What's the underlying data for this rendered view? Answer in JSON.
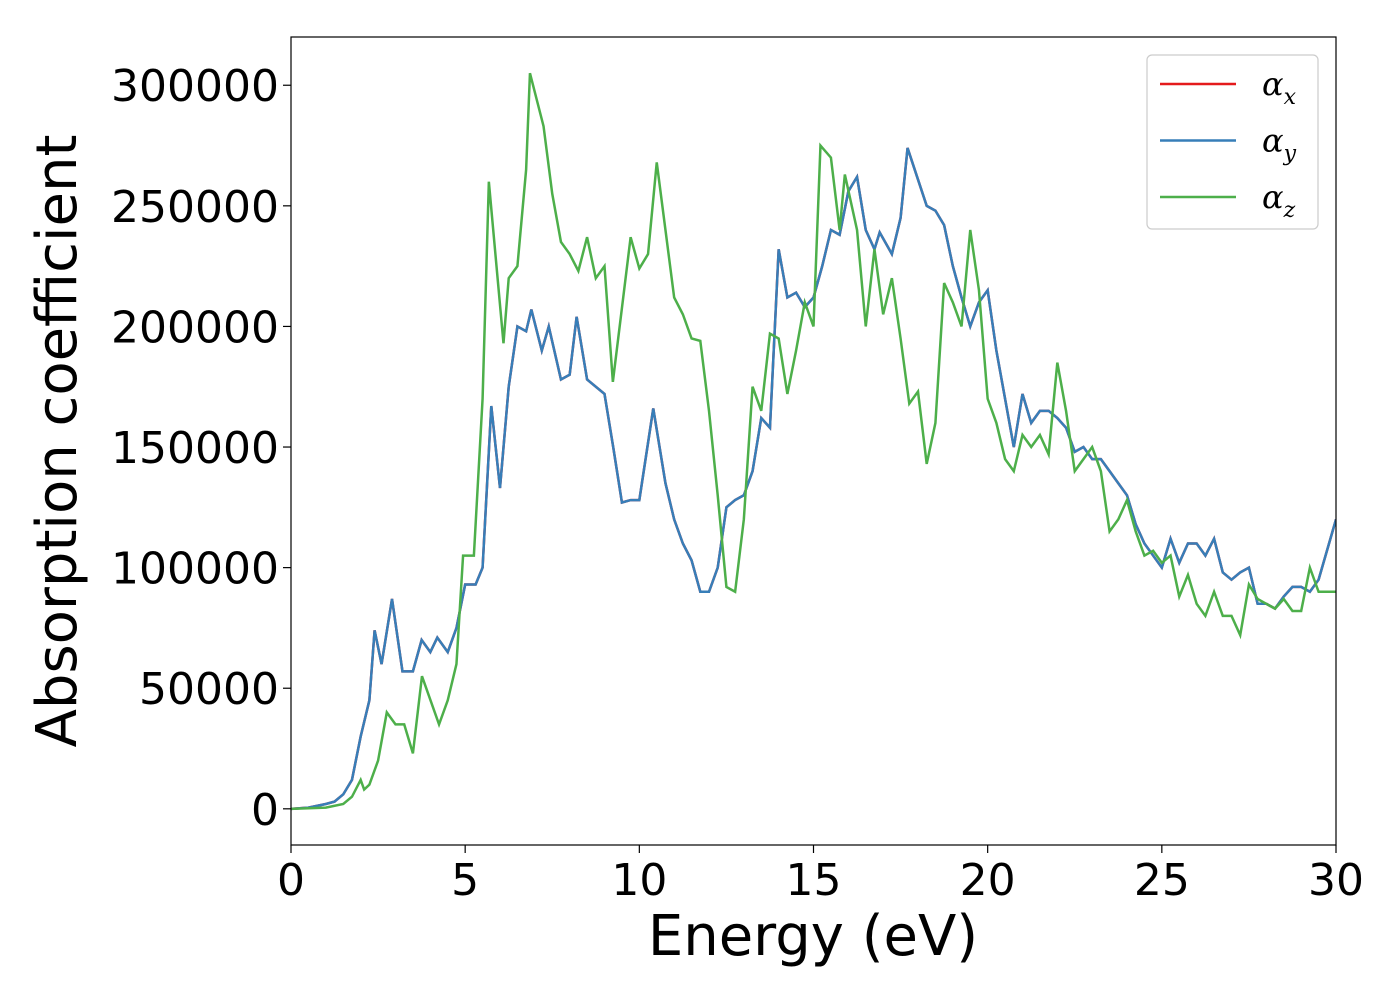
{
  "chart_data": {
    "type": "line",
    "x_label": "Energy (eV)",
    "y_label": "Absorption coefficient",
    "xlim": [
      0,
      30
    ],
    "ylim": [
      -15000,
      320000
    ],
    "xticks": [
      0,
      5,
      10,
      15,
      20,
      25,
      30
    ],
    "yticks": [
      0,
      50000,
      100000,
      150000,
      200000,
      250000,
      300000
    ],
    "legend": "upper right",
    "series": [
      {
        "name": "αx",
        "color": "#e41a1c",
        "x": [
          0,
          0.5,
          1,
          1.25,
          1.5,
          1.75,
          2,
          2.25,
          2.4,
          2.6,
          2.9,
          3.2,
          3.5,
          3.75,
          4,
          4.2,
          4.5,
          4.75,
          5,
          5.3,
          5.5,
          5.75,
          6,
          6.25,
          6.5,
          6.75,
          6.9,
          7.2,
          7.4,
          7.75,
          8,
          8.2,
          8.5,
          9,
          9.25,
          9.5,
          9.75,
          10,
          10.4,
          10.75,
          11,
          11.25,
          11.5,
          11.75,
          12,
          12.25,
          12.5,
          12.75,
          13,
          13.25,
          13.5,
          13.75,
          14,
          14.25,
          14.5,
          14.75,
          15,
          15.25,
          15.5,
          15.75,
          16,
          16.25,
          16.5,
          16.75,
          16.9,
          17.25,
          17.5,
          17.7,
          18.25,
          18.5,
          18.75,
          19,
          19.25,
          19.5,
          19.75,
          20,
          20.25,
          20.5,
          20.75,
          21,
          21.25,
          21.5,
          21.75,
          22,
          22.25,
          22.5,
          22.75,
          23,
          23.25,
          23.5,
          23.75,
          24,
          24.25,
          24.5,
          24.75,
          25,
          25.25,
          25.5,
          25.75,
          26,
          26.25,
          26.5,
          26.75,
          27,
          27.25,
          27.5,
          27.75,
          28,
          28.25,
          28.5,
          28.75,
          29,
          29.25,
          29.5,
          30
        ],
        "values": [
          0,
          500,
          2000,
          3000,
          6000,
          12000,
          30000,
          45000,
          74000,
          60000,
          87000,
          57000,
          57000,
          70000,
          65000,
          71000,
          65000,
          75000,
          93000,
          93000,
          100000,
          167000,
          133000,
          175000,
          200000,
          198000,
          207000,
          190000,
          200000,
          178000,
          180000,
          204000,
          178000,
          172000,
          150000,
          127000,
          128000,
          128000,
          166000,
          135000,
          120000,
          110000,
          103000,
          90000,
          90000,
          100000,
          125000,
          128000,
          130000,
          140000,
          162000,
          158000,
          232000,
          212000,
          214000,
          208000,
          212000,
          225000,
          240000,
          238000,
          256000,
          262000,
          240000,
          232000,
          239000,
          230000,
          245000,
          274000,
          250000,
          248000,
          242000,
          225000,
          212000,
          200000,
          210000,
          215000,
          190000,
          170000,
          150000,
          172000,
          160000,
          165000,
          165000,
          162000,
          158000,
          148000,
          150000,
          145000,
          145000,
          140000,
          135000,
          130000,
          118000,
          110000,
          105000,
          100000,
          112000,
          102000,
          110000,
          110000,
          105000,
          112000,
          98000,
          95000,
          98000,
          100000,
          85000,
          85000,
          83000,
          88000,
          92000,
          92000,
          90000,
          95000,
          120000
        ]
      },
      {
        "name": "αy",
        "color": "#377eb8",
        "x": [
          0,
          0.5,
          1,
          1.25,
          1.5,
          1.75,
          2,
          2.25,
          2.4,
          2.6,
          2.9,
          3.2,
          3.5,
          3.75,
          4,
          4.2,
          4.5,
          4.75,
          5,
          5.3,
          5.5,
          5.75,
          6,
          6.25,
          6.5,
          6.75,
          6.9,
          7.2,
          7.4,
          7.75,
          8,
          8.2,
          8.5,
          9,
          9.25,
          9.5,
          9.75,
          10,
          10.4,
          10.75,
          11,
          11.25,
          11.5,
          11.75,
          12,
          12.25,
          12.5,
          12.75,
          13,
          13.25,
          13.5,
          13.75,
          14,
          14.25,
          14.5,
          14.75,
          15,
          15.25,
          15.5,
          15.75,
          16,
          16.25,
          16.5,
          16.75,
          16.9,
          17.25,
          17.5,
          17.7,
          18.25,
          18.5,
          18.75,
          19,
          19.25,
          19.5,
          19.75,
          20,
          20.25,
          20.5,
          20.75,
          21,
          21.25,
          21.5,
          21.75,
          22,
          22.25,
          22.5,
          22.75,
          23,
          23.25,
          23.5,
          23.75,
          24,
          24.25,
          24.5,
          24.75,
          25,
          25.25,
          25.5,
          25.75,
          26,
          26.25,
          26.5,
          26.75,
          27,
          27.25,
          27.5,
          27.75,
          28,
          28.25,
          28.5,
          28.75,
          29,
          29.25,
          29.5,
          30
        ],
        "values": [
          0,
          500,
          2000,
          3000,
          6000,
          12000,
          30000,
          45000,
          74000,
          60000,
          87000,
          57000,
          57000,
          70000,
          65000,
          71000,
          65000,
          75000,
          93000,
          93000,
          100000,
          167000,
          133000,
          175000,
          200000,
          198000,
          207000,
          190000,
          200000,
          178000,
          180000,
          204000,
          178000,
          172000,
          150000,
          127000,
          128000,
          128000,
          166000,
          135000,
          120000,
          110000,
          103000,
          90000,
          90000,
          100000,
          125000,
          128000,
          130000,
          140000,
          162000,
          158000,
          232000,
          212000,
          214000,
          208000,
          212000,
          225000,
          240000,
          238000,
          256000,
          262000,
          240000,
          232000,
          239000,
          230000,
          245000,
          274000,
          250000,
          248000,
          242000,
          225000,
          212000,
          200000,
          210000,
          215000,
          190000,
          170000,
          150000,
          172000,
          160000,
          165000,
          165000,
          162000,
          158000,
          148000,
          150000,
          145000,
          145000,
          140000,
          135000,
          130000,
          118000,
          110000,
          105000,
          100000,
          112000,
          102000,
          110000,
          110000,
          105000,
          112000,
          98000,
          95000,
          98000,
          100000,
          85000,
          85000,
          83000,
          88000,
          92000,
          92000,
          90000,
          95000,
          120000
        ]
      },
      {
        "name": "αz",
        "color": "#4daf4a",
        "x": [
          0,
          1,
          1.5,
          1.75,
          2,
          2.1,
          2.25,
          2.5,
          2.75,
          3,
          3.25,
          3.5,
          3.76,
          4.25,
          4.5,
          4.75,
          4.94,
          5.25,
          5.5,
          5.68,
          6.1,
          6.25,
          6.5,
          6.75,
          6.86,
          7.25,
          7.5,
          7.75,
          8,
          8.25,
          8.5,
          8.75,
          9,
          9.24,
          9.75,
          10,
          10.25,
          10.5,
          10.75,
          11,
          11.25,
          11.5,
          11.75,
          12,
          12.25,
          12.5,
          12.75,
          13,
          13.25,
          13.5,
          13.75,
          14,
          14.25,
          14.5,
          14.75,
          15,
          15.2,
          15.5,
          15.75,
          15.9,
          16.25,
          16.5,
          16.75,
          17,
          17.25,
          17.5,
          17.75,
          18,
          18.25,
          18.5,
          18.75,
          19,
          19.25,
          19.5,
          19.75,
          20,
          20.25,
          20.5,
          20.75,
          21,
          21.25,
          21.5,
          21.75,
          22,
          22.25,
          22.5,
          22.75,
          23,
          23.25,
          23.5,
          23.75,
          24,
          24.25,
          24.5,
          24.75,
          25,
          25.25,
          25.5,
          25.75,
          26,
          26.25,
          26.5,
          26.75,
          27,
          27.25,
          27.5,
          27.75,
          28,
          28.25,
          28.5,
          28.75,
          29,
          29.25,
          29.5,
          30
        ],
        "values": [
          0,
          500,
          2000,
          5000,
          12000,
          8000,
          10000,
          20000,
          40000,
          35000,
          35000,
          23000,
          55000,
          35000,
          45000,
          60000,
          105000,
          105000,
          170000,
          260000,
          193000,
          220000,
          225000,
          265000,
          305000,
          283000,
          255000,
          235000,
          230000,
          223000,
          237000,
          220000,
          225000,
          177000,
          237000,
          224000,
          230000,
          268000,
          240000,
          212000,
          205000,
          195000,
          194000,
          165000,
          130000,
          92000,
          90000,
          120000,
          175000,
          165000,
          197000,
          195000,
          172000,
          190000,
          210000,
          200000,
          275000,
          270000,
          240000,
          263000,
          240000,
          200000,
          232000,
          205000,
          220000,
          195000,
          168000,
          173000,
          143000,
          160000,
          218000,
          210000,
          200000,
          240000,
          215000,
          170000,
          160000,
          145000,
          140000,
          155000,
          150000,
          155000,
          147000,
          185000,
          165000,
          140000,
          145000,
          150000,
          140000,
          115000,
          120000,
          128000,
          115000,
          105000,
          107000,
          102000,
          105000,
          88000,
          97000,
          85000,
          80000,
          90000,
          80000,
          80000,
          72000,
          93000,
          87000,
          85000,
          83000,
          87000,
          82000,
          82000,
          100000,
          90000,
          90000
        ]
      }
    ]
  }
}
